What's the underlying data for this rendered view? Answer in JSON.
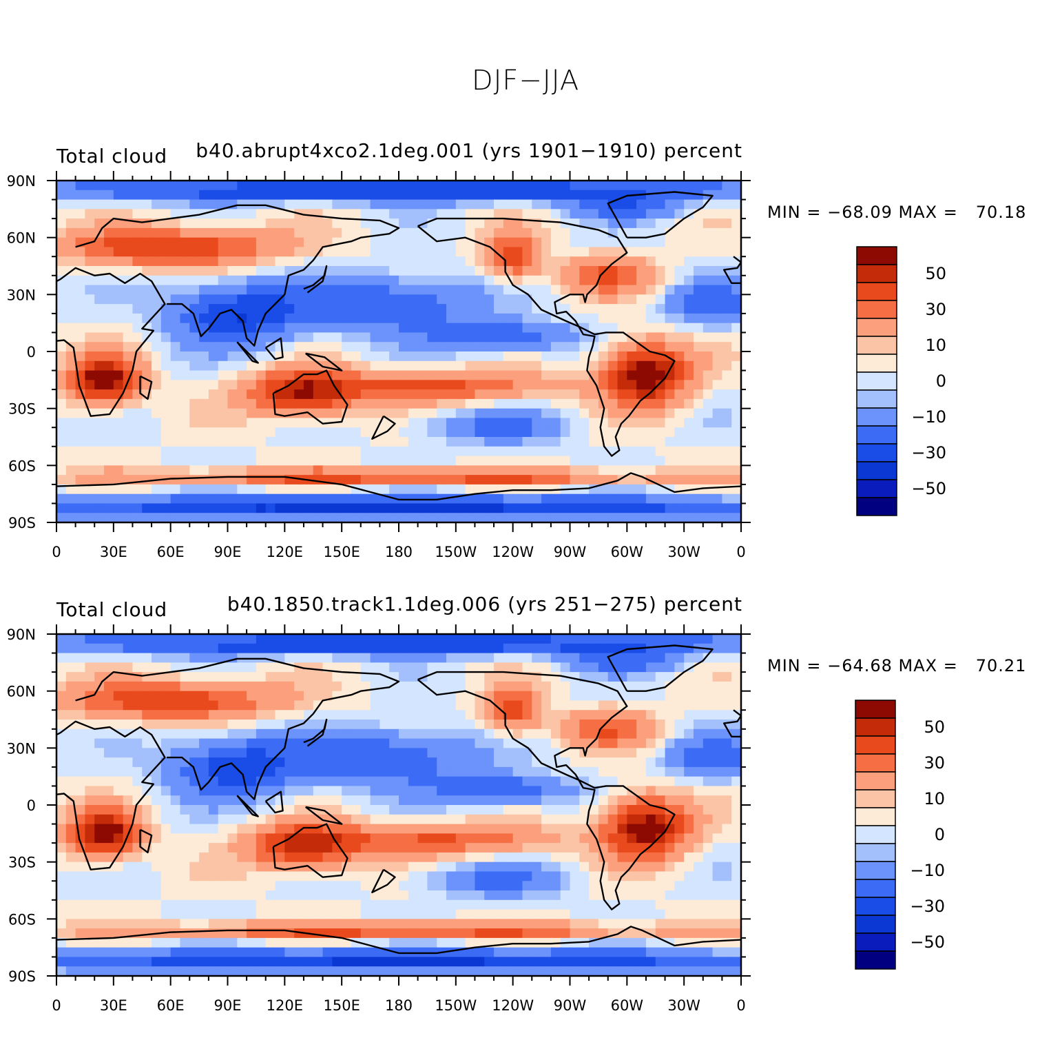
{
  "page_title": "DJF−JJA",
  "colors": {
    "levels": [
      "#000080",
      "#0a1dbc",
      "#0b37d2",
      "#1a4ce8",
      "#3c6cf5",
      "#6b93fb",
      "#a3bffc",
      "#d4e6ff",
      "#fdebd7",
      "#fcc4a6",
      "#fb9f7c",
      "#f66f44",
      "#e94a1d",
      "#c32b09",
      "#8c0a02"
    ],
    "coast": "#000000"
  },
  "chart_data": [
    {
      "type": "heatmap",
      "variable_label": "Total cloud",
      "case_label": "b40.abrupt4xco2.1deg.001 (yrs 1901−1910)",
      "units_label": "percent",
      "min_max_text": "MIN = −68.09 MAX =   70.18",
      "min": -68.09,
      "max": 70.18,
      "x_ticks": [
        "0",
        "30E",
        "60E",
        "90E",
        "120E",
        "150E",
        "180",
        "150W",
        "120W",
        "90W",
        "60W",
        "30W",
        "0"
      ],
      "y_ticks": [
        "90N",
        "60N",
        "30N",
        "0",
        "30S",
        "60S",
        "90S"
      ],
      "xlim": [
        0,
        360
      ],
      "ylim": [
        -90,
        90
      ],
      "colorbar_labels": [
        "50",
        "30",
        "10",
        "0",
        "−10",
        "−30",
        "−50"
      ],
      "colorbar_levels": [
        -60,
        -50,
        -40,
        -30,
        -20,
        -10,
        -5,
        0,
        5,
        10,
        20,
        30,
        40,
        50,
        60
      ]
    },
    {
      "type": "heatmap",
      "variable_label": "Total cloud",
      "case_label": "b40.1850.track1.1deg.006 (yrs 251−275)",
      "units_label": "percent",
      "min_max_text": "MIN = −64.68 MAX =   70.21",
      "min": -64.68,
      "max": 70.21,
      "x_ticks": [
        "0",
        "30E",
        "60E",
        "90E",
        "120E",
        "150E",
        "180",
        "150W",
        "120W",
        "90W",
        "60W",
        "30W",
        "0"
      ],
      "y_ticks": [
        "90N",
        "60N",
        "30N",
        "0",
        "30S",
        "60S",
        "90S"
      ],
      "xlim": [
        0,
        360
      ],
      "ylim": [
        -90,
        90
      ],
      "colorbar_labels": [
        "50",
        "30",
        "10",
        "0",
        "−10",
        "−30",
        "−50"
      ],
      "colorbar_levels": [
        -60,
        -50,
        -40,
        -30,
        -20,
        -10,
        -5,
        0,
        5,
        10,
        20,
        30,
        40,
        50,
        60
      ]
    }
  ]
}
